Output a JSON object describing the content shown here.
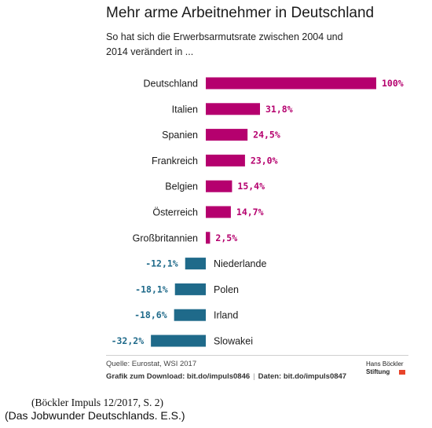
{
  "title": "Mehr arme Arbeitnehmer in Deutschland",
  "subtitle": "So hat sich die Erwerbsarmutsrate zwischen 2004 und 2014 verändert in ...",
  "chart_data": {
    "type": "bar",
    "orientation": "horizontal",
    "categories": [
      "Deutschland",
      "Italien",
      "Spanien",
      "Frankreich",
      "Belgien",
      "Österreich",
      "Großbritannien",
      "Niederlande",
      "Polen",
      "Irland",
      "Slowakei"
    ],
    "values": [
      100,
      31.8,
      24.5,
      23.0,
      15.4,
      14.7,
      2.5,
      -12.1,
      -18.1,
      -18.6,
      -32.2
    ],
    "value_labels": [
      "100%",
      "31,8%",
      "24,5%",
      "23,0%",
      "15,4%",
      "14,7%",
      "2,5%",
      "-12,1%",
      "-18,1%",
      "-18,6%",
      "-32,2%"
    ],
    "unit": "%",
    "colors": {
      "positive": "#b5006e",
      "negative": "#1f6a8a"
    }
  },
  "footer": {
    "source": "Quelle: Eurostat, WSI 2017",
    "download": "Grafik zum Download: bit.do/impuls0846",
    "separator": "|",
    "data_link": "Daten: bit.do/impuls0847",
    "logo_line1": "Hans Böckler",
    "logo_line2": "Stiftung"
  },
  "notes": {
    "line1": "(Böckler Impuls 12/2017, S. 2)",
    "line2": "(Das Jobwunder Deutschlands. E.S.)"
  }
}
